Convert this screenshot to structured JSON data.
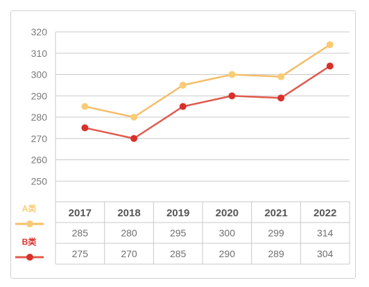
{
  "chart_data": {
    "type": "line",
    "categories": [
      "2017",
      "2018",
      "2019",
      "2020",
      "2021",
      "2022"
    ],
    "series": [
      {
        "name": "A类",
        "values": [
          285,
          280,
          295,
          300,
          299,
          314
        ],
        "labels": [
          "285",
          "280",
          "295",
          "300",
          "299",
          "314"
        ],
        "color": "#f9cb75"
      },
      {
        "name": "B类",
        "values": [
          275,
          270,
          285,
          290,
          289,
          304
        ],
        "labels": [
          "275",
          "270",
          "285",
          "290",
          "289",
          "304"
        ],
        "color": "#d9302a"
      }
    ],
    "yticks": [
      250,
      260,
      270,
      280,
      290,
      300,
      310,
      320
    ],
    "ylim": [
      240,
      320
    ],
    "grid": true,
    "legend": "left of data table"
  },
  "colors": {
    "grid": "#c8c8c8",
    "table_border": "#c8c8c8",
    "line_a": "#f4bd6a",
    "line_b": "#e05a4e",
    "marker_a": "#f9cb75",
    "marker_b": "#d9302a"
  }
}
